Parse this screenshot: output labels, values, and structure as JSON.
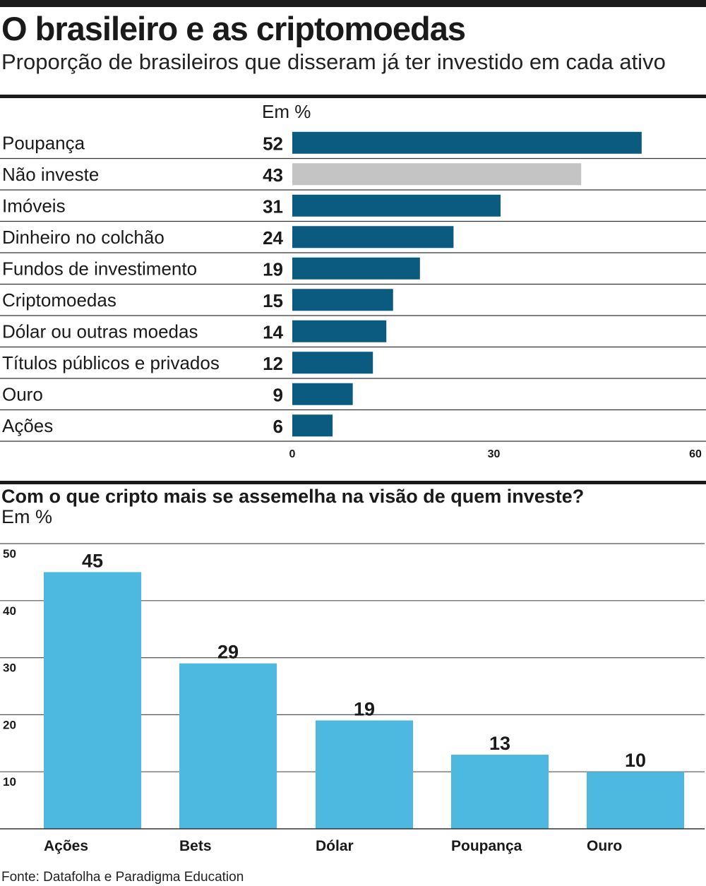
{
  "header": {
    "title": "O brasileiro e as criptomoedas",
    "subtitle": "Proporção de brasileiros que disseram já ter investido em cada ativo"
  },
  "colors": {
    "primary_bar": "#0b5a80",
    "highlight_bar": "#c4c4c4",
    "secondary_bar": "#4db8e0",
    "text": "#1a1a1a",
    "rule": "#1a1a1a",
    "gridline": "#555555"
  },
  "chart_data": [
    {
      "type": "bar",
      "orientation": "horizontal",
      "unit_label": "Em %",
      "categories": [
        "Poupança",
        "Não investe",
        "Imóveis",
        "Dinheiro no colchão",
        "Fundos de investimento",
        "Criptomoedas",
        "Dólar ou outras moedas",
        "Títulos públicos e privados",
        "Ouro",
        "Ações"
      ],
      "values": [
        52,
        43,
        31,
        24,
        19,
        15,
        14,
        12,
        9,
        6
      ],
      "highlight_category": "Não investe",
      "xlim": [
        0,
        60
      ],
      "xticks": [
        "0",
        "30",
        "60"
      ],
      "grid": false
    },
    {
      "type": "bar",
      "orientation": "vertical",
      "title": "Com o que cripto mais se assemelha na visão de quem investe?",
      "unit_label": "Em %",
      "categories": [
        "Ações",
        "Bets",
        "Dólar",
        "Poupança",
        "Ouro"
      ],
      "values": [
        45,
        29,
        19,
        13,
        10
      ],
      "ylim": [
        0,
        50
      ],
      "yticks": [
        "10",
        "20",
        "30",
        "40",
        "50"
      ],
      "grid": true
    }
  ],
  "footer": {
    "source": "Fonte: Datafolha e Paradigma Education"
  }
}
